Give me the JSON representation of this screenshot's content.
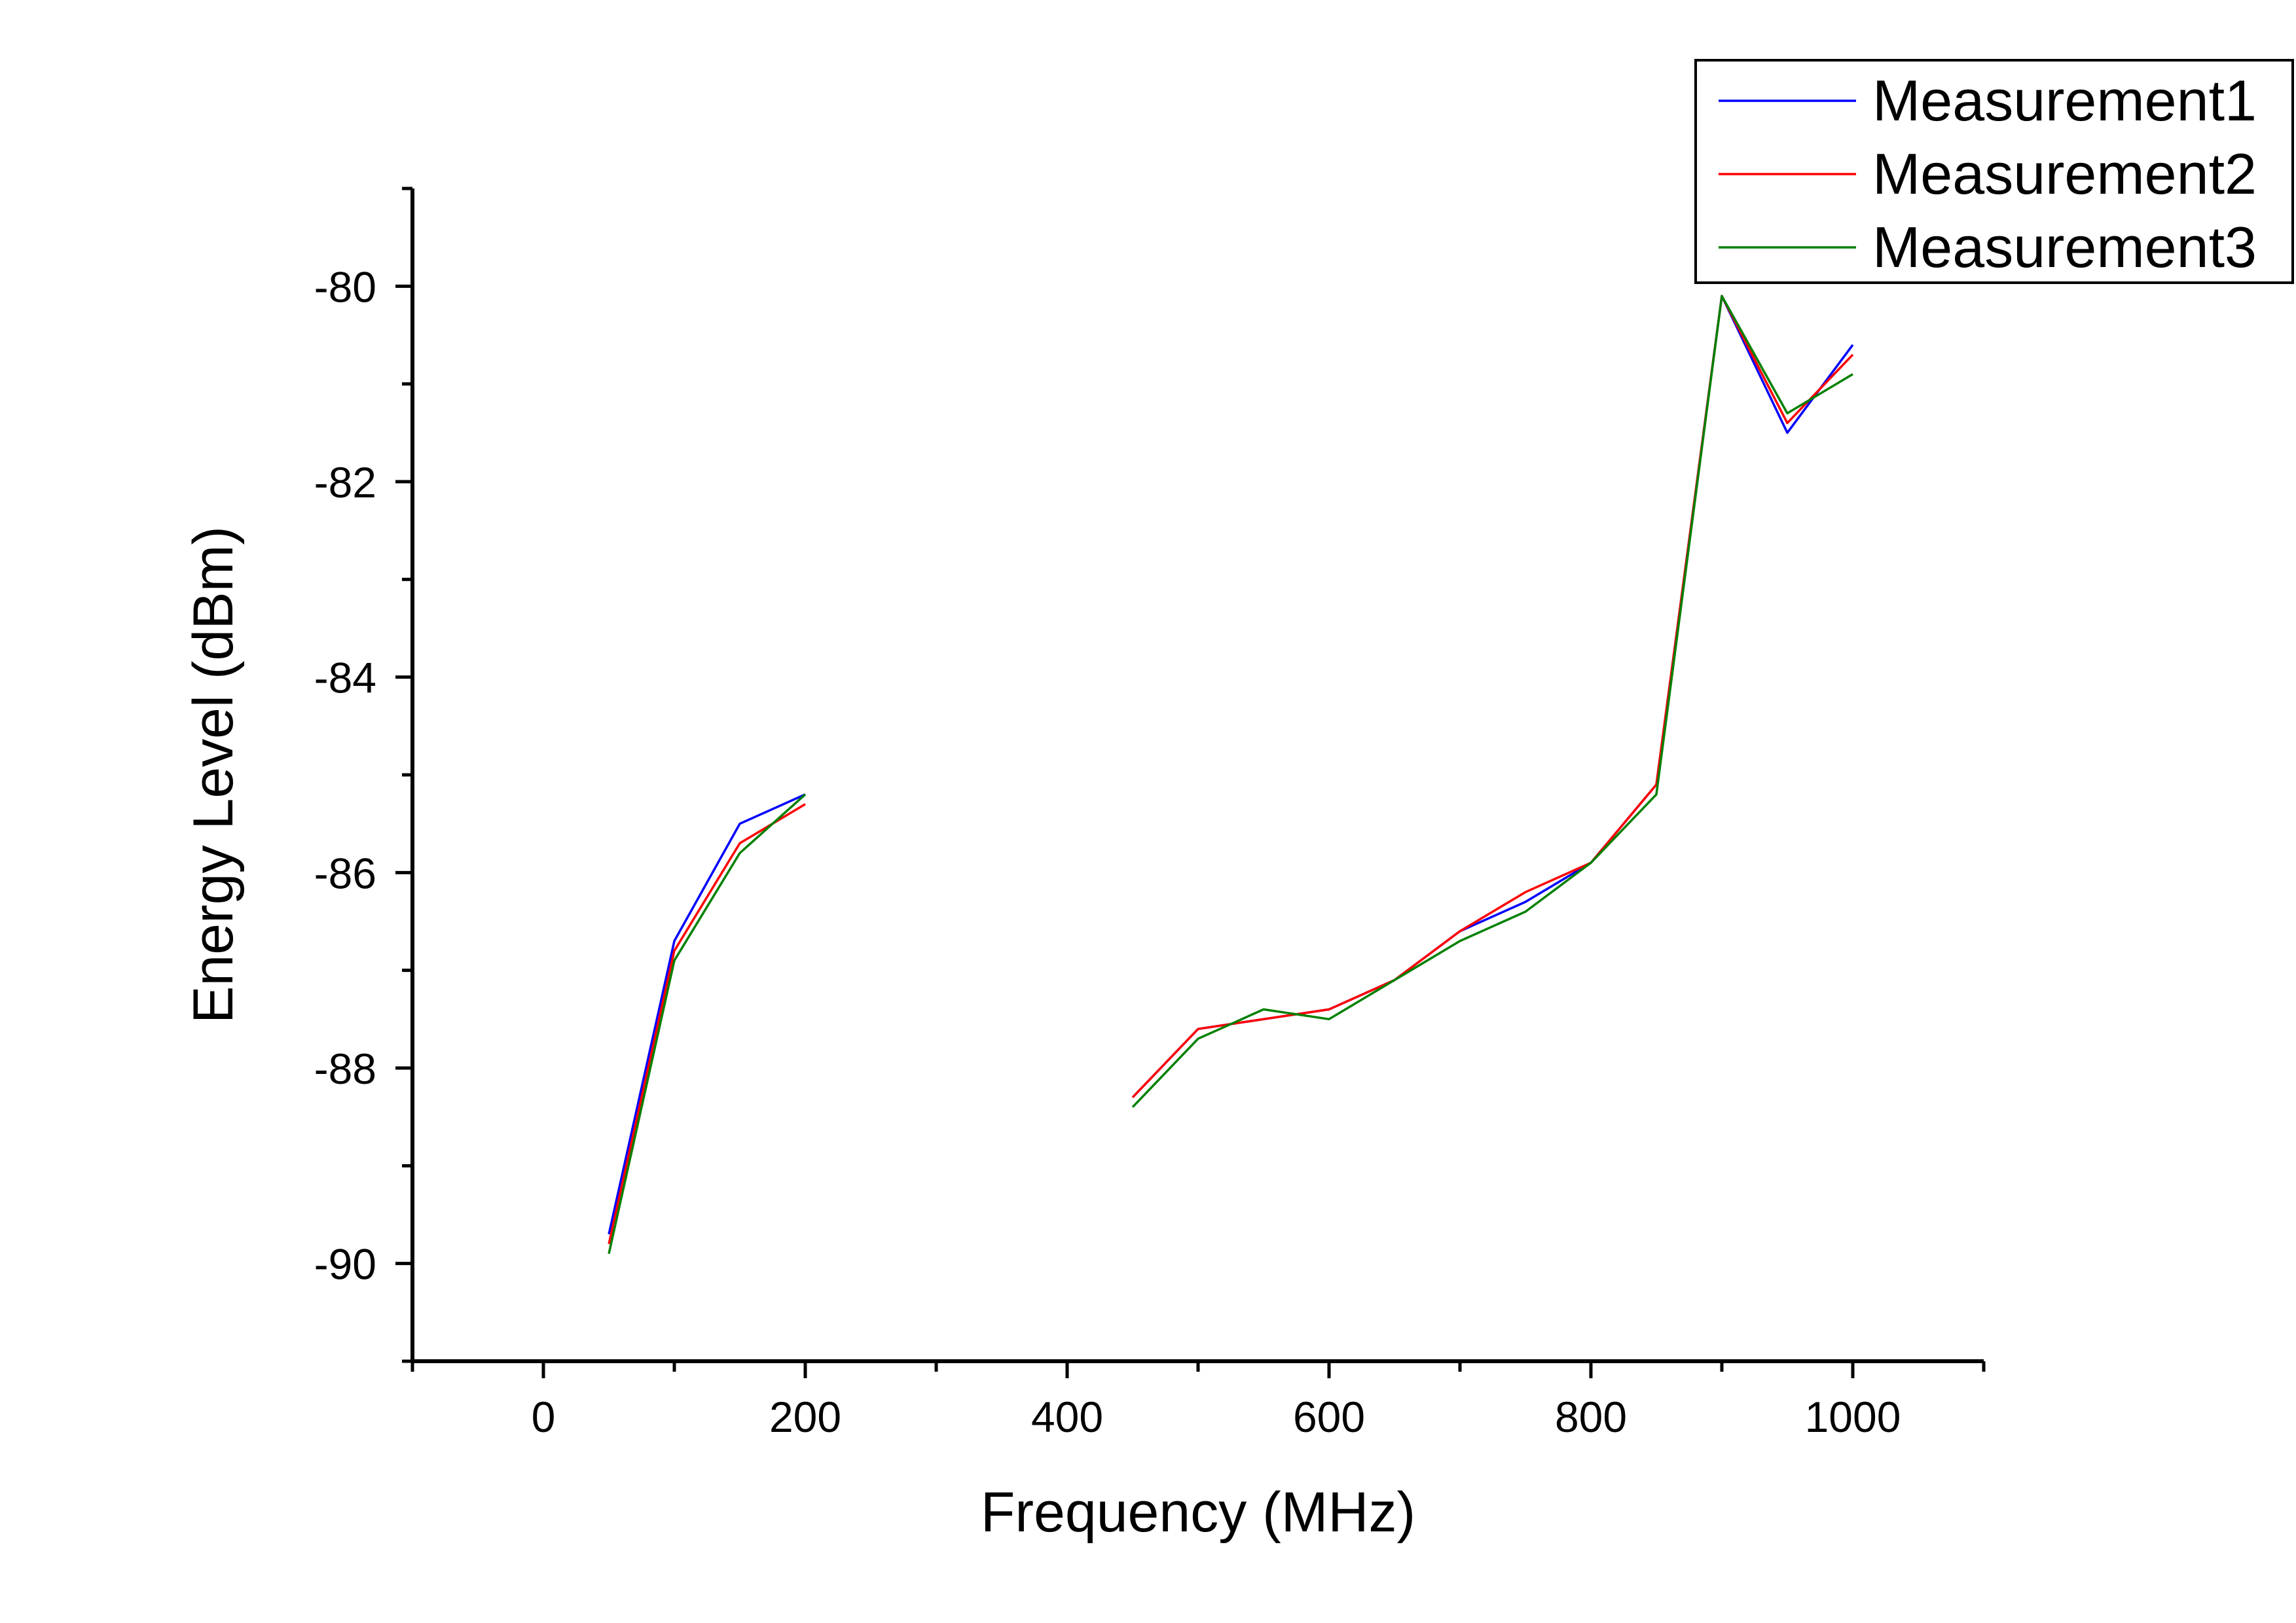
{
  "chart_data": {
    "type": "line",
    "title": "",
    "xlabel": "Frequency (MHz)",
    "ylabel": "Energy Level (dBm)",
    "xlim": [
      -100,
      1100
    ],
    "ylim": [
      -91,
      -79
    ],
    "x_ticks_major": [
      0,
      200,
      400,
      600,
      800,
      1000
    ],
    "x_tick_labels": [
      "0",
      "200",
      "400",
      "600",
      "800",
      "1000"
    ],
    "y_ticks_major": [
      -90,
      -88,
      -86,
      -84,
      -82,
      -80
    ],
    "y_tick_labels": [
      "-90",
      "-88",
      "-86",
      "-84",
      "-82",
      "-80"
    ],
    "grid": false,
    "legend_position": "top-right",
    "series": [
      {
        "name": "Measurement1",
        "color": "#0000ff",
        "segments": [
          [
            [
              50,
              -89.7
            ],
            [
              100,
              -86.7
            ],
            [
              150,
              -85.5
            ],
            [
              200,
              -85.2
            ]
          ],
          [
            [
              450,
              -88.3
            ],
            [
              500,
              -87.6
            ],
            [
              550,
              -87.5
            ],
            [
              600,
              -87.4
            ],
            [
              650,
              -87.1
            ],
            [
              700,
              -86.6
            ],
            [
              750,
              -86.3
            ],
            [
              800,
              -85.9
            ],
            [
              850,
              -85.1
            ],
            [
              900,
              -80.1
            ],
            [
              950,
              -81.5
            ],
            [
              1000,
              -80.6
            ]
          ]
        ]
      },
      {
        "name": "Measurement2",
        "color": "#ff0000",
        "segments": [
          [
            [
              50,
              -89.8
            ],
            [
              100,
              -86.8
            ],
            [
              150,
              -85.7
            ],
            [
              200,
              -85.3
            ]
          ],
          [
            [
              450,
              -88.3
            ],
            [
              500,
              -87.6
            ],
            [
              550,
              -87.5
            ],
            [
              600,
              -87.4
            ],
            [
              650,
              -87.1
            ],
            [
              700,
              -86.6
            ],
            [
              750,
              -86.2
            ],
            [
              800,
              -85.9
            ],
            [
              850,
              -85.1
            ],
            [
              900,
              -80.1
            ],
            [
              950,
              -81.4
            ],
            [
              1000,
              -80.7
            ]
          ]
        ]
      },
      {
        "name": "Measurement3",
        "color": "#008000",
        "segments": [
          [
            [
              50,
              -89.9
            ],
            [
              100,
              -86.9
            ],
            [
              150,
              -85.8
            ],
            [
              200,
              -85.2
            ]
          ],
          [
            [
              450,
              -88.4
            ],
            [
              500,
              -87.7
            ],
            [
              550,
              -87.4
            ],
            [
              600,
              -87.5
            ],
            [
              650,
              -87.1
            ],
            [
              700,
              -86.7
            ],
            [
              750,
              -86.4
            ],
            [
              800,
              -85.9
            ],
            [
              850,
              -85.2
            ],
            [
              900,
              -80.1
            ],
            [
              950,
              -81.3
            ],
            [
              1000,
              -80.9
            ]
          ]
        ]
      }
    ]
  }
}
